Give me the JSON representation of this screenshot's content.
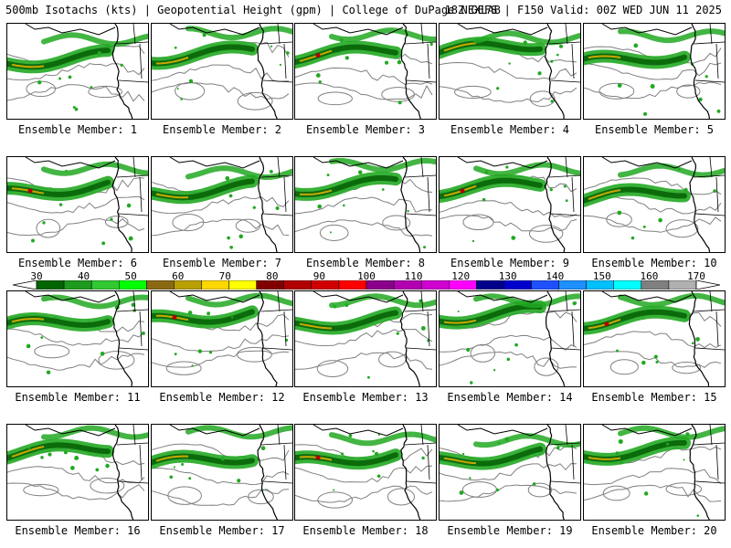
{
  "header": {
    "left_text": "500mb Isotachs (kts) | Geopotential Height (gpm) | College of DuPage NEXLAB",
    "right_text": "18Z GEFS | F150 Valid: 00Z WED JUN 11 2025"
  },
  "members": [
    "Ensemble Member: 1",
    "Ensemble Member: 2",
    "Ensemble Member: 3",
    "Ensemble Member: 4",
    "Ensemble Member: 5",
    "Ensemble Member: 6",
    "Ensemble Member: 7",
    "Ensemble Member: 8",
    "Ensemble Member: 9",
    "Ensemble Member: 10",
    "Ensemble Member: 11",
    "Ensemble Member: 12",
    "Ensemble Member: 13",
    "Ensemble Member: 14",
    "Ensemble Member: 15",
    "Ensemble Member: 16",
    "Ensemble Member: 17",
    "Ensemble Member: 18",
    "Ensemble Member: 19",
    "Ensemble Member: 20"
  ],
  "colorbar": {
    "ticks": [
      "30",
      "40",
      "50",
      "60",
      "70",
      "80",
      "90",
      "100",
      "110",
      "120",
      "130",
      "140",
      "150",
      "160",
      "170"
    ],
    "colors": [
      "#006400",
      "#1e9a1e",
      "#32c832",
      "#00ff00",
      "#8b6914",
      "#b8a000",
      "#ffd700",
      "#ffff00",
      "#800000",
      "#b00000",
      "#d00000",
      "#ff0000",
      "#8b008b",
      "#b000b0",
      "#d000d0",
      "#ff00ff",
      "#00008b",
      "#0000cd",
      "#1e50ff",
      "#1e90ff",
      "#00bfff",
      "#00ffff",
      "#808080",
      "#b0b0b0"
    ]
  },
  "map_colors": {
    "jet": "#22a822",
    "jet_dark": "#0b6b0b",
    "jet_core": "#c8a800",
    "jet_max": "#b00000",
    "height_contour": "#808080",
    "coastline": "#000000"
  }
}
